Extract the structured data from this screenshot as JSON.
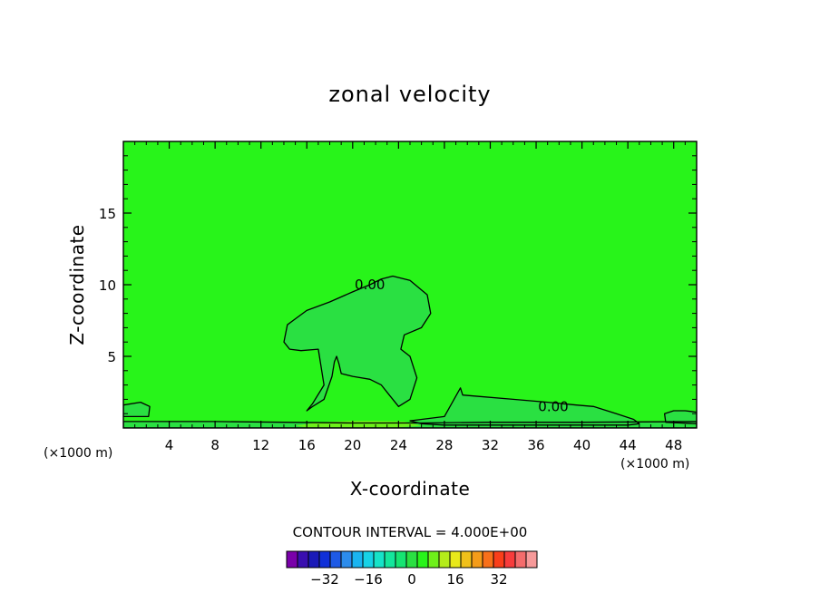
{
  "chart_data": {
    "type": "contour",
    "title": "zonal velocity",
    "xlabel": "X-coordinate",
    "ylabel": "Z-coordinate",
    "x_unit_left": "(×1000 m)",
    "x_unit_right": "(×1000 m)",
    "xlim": [
      0,
      50
    ],
    "ylim": [
      0,
      20
    ],
    "x_ticks": [
      4,
      8,
      12,
      16,
      20,
      24,
      28,
      32,
      36,
      40,
      44,
      48
    ],
    "x_tick_labels": [
      "4",
      "8",
      "12",
      "16",
      "20",
      "24",
      "28",
      "32",
      "36",
      "40",
      "44",
      "48"
    ],
    "y_ticks": [
      5,
      10,
      15
    ],
    "y_tick_labels": [
      "5",
      "10",
      "15"
    ],
    "contour_labels": [
      {
        "text": "0.00",
        "x": 21.5,
        "z": 10.0
      },
      {
        "text": "0.00",
        "x": 37.5,
        "z": 1.5
      }
    ],
    "contour_interval_text": "CONTOUR INTERVAL = 4.000E+00",
    "field": {
      "background_level": 4,
      "regions": [
        {
          "level": 0,
          "description": "plume",
          "outline_x": [
            14.8,
            16,
            18,
            20,
            21.5,
            22.5,
            23.5,
            25,
            26.5,
            26.8,
            26,
            24.5,
            24.2,
            25,
            25.6,
            25,
            24,
            23.2,
            22.5,
            21.5,
            20,
            19,
            18.8,
            18.6,
            18.4,
            18.2,
            17.5,
            16.5,
            16.0,
            16.5,
            17.5,
            17.0,
            15.5,
            14.5,
            14.0,
            14.3
          ],
          "outline_z": [
            7.5,
            8.2,
            8.8,
            9.5,
            10.0,
            10.4,
            10.6,
            10.3,
            9.3,
            8.0,
            7.0,
            6.5,
            5.5,
            5.0,
            3.5,
            2.0,
            1.5,
            2.3,
            3.0,
            3.4,
            3.6,
            3.8,
            4.5,
            5.0,
            4.6,
            3.6,
            2.0,
            1.5,
            1.2,
            1.7,
            3.0,
            5.5,
            5.4,
            5.5,
            6.0,
            7.2
          ]
        },
        {
          "level": 0,
          "description": "lee region",
          "outline_x": [
            25,
            28,
            29.4,
            29.6,
            31,
            34,
            37,
            39.5,
            41,
            43,
            44.5,
            45,
            44,
            40,
            36,
            32,
            28,
            26
          ],
          "outline_z": [
            0.5,
            0.8,
            2.8,
            2.3,
            2.2,
            2.0,
            1.8,
            1.6,
            1.5,
            1.0,
            0.6,
            0.3,
            0.2,
            0.2,
            0.2,
            0.2,
            0.2,
            0.3
          ]
        },
        {
          "level": 0,
          "description": "left boundary",
          "outline_x": [
            0,
            1.5,
            2.3,
            2.2,
            0
          ],
          "outline_z": [
            1.6,
            1.8,
            1.5,
            0.8,
            0.8
          ]
        },
        {
          "level": 0,
          "description": "right boundary",
          "outline_x": [
            47.2,
            48,
            49,
            50,
            50,
            47.3
          ],
          "outline_z": [
            1.0,
            1.2,
            1.2,
            1.1,
            0.3,
            0.4
          ]
        },
        {
          "level": 0,
          "description": "near-surface strip",
          "outline_x": [
            0,
            8,
            14,
            20,
            26,
            32,
            40,
            50,
            50,
            0
          ],
          "outline_z": [
            0.45,
            0.45,
            0.4,
            0.35,
            0.35,
            0.4,
            0.4,
            0.45,
            0,
            0
          ]
        },
        {
          "level": 8,
          "description": "surface jet",
          "outline_x": [
            15,
            17,
            20,
            22,
            24.5,
            26,
            24,
            20,
            16
          ],
          "outline_z": [
            0.15,
            0.4,
            0.5,
            0.5,
            0.45,
            0.15,
            0.05,
            0.05,
            0.05
          ]
        }
      ]
    },
    "colorbar": {
      "colors": [
        "#7a00aa",
        "#3a0fb0",
        "#1a1ab8",
        "#1030d8",
        "#1e5ae6",
        "#2c8cec",
        "#1ab4f0",
        "#17d2e6",
        "#16e3c8",
        "#14e69c",
        "#16e472",
        "#2ae042",
        "#28f41a",
        "#6ef01a",
        "#b4ec1a",
        "#e8e81a",
        "#f0c01a",
        "#f49c1a",
        "#f8701a",
        "#fa3e1a",
        "#f83c3c",
        "#f46c6c",
        "#f79a9a"
      ],
      "levels": [
        -44,
        -40,
        -36,
        -32,
        -28,
        -24,
        -20,
        -16,
        -12,
        -8,
        -4,
        0,
        4,
        8,
        12,
        16,
        20,
        24,
        28,
        32,
        36,
        40,
        44
      ],
      "tick_values": [
        -32,
        -16,
        0,
        16,
        32
      ],
      "tick_labels": [
        "−32",
        "−16",
        "0",
        "16",
        "32"
      ]
    }
  }
}
